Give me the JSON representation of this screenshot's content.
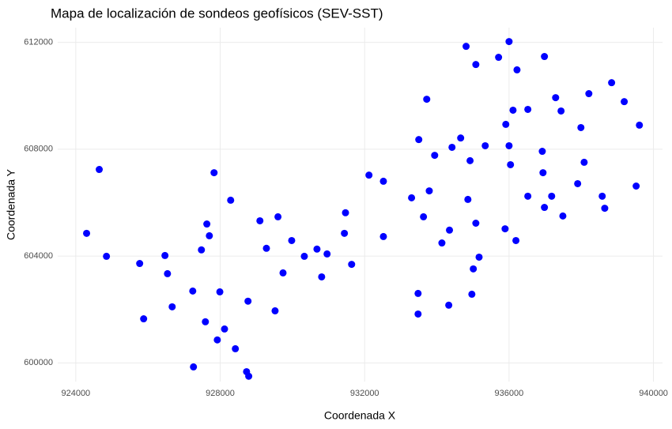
{
  "chart_data": {
    "type": "scatter",
    "title": "Mapa de localización de sondeos geofísicos (SEV-SST)",
    "x_label": "Coordenada X",
    "y_label": "Coordenada Y",
    "color": "#0000ff",
    "grid": true,
    "xlim": [
      923500,
      940250
    ],
    "ylim": [
      599300,
      612550
    ],
    "xticks": [
      924000,
      928000,
      932000,
      936000,
      940000
    ],
    "yticks": [
      600000,
      604000,
      608000,
      612000
    ],
    "x": [
      924300,
      924650,
      924850,
      925770,
      925880,
      926470,
      926540,
      926670,
      927240,
      927260,
      927480,
      927590,
      927630,
      927700,
      927830,
      927920,
      927990,
      928120,
      928290,
      928420,
      928730,
      928770,
      928790,
      929100,
      929280,
      929520,
      929600,
      929740,
      929980,
      930330,
      930680,
      930810,
      930960,
      931440,
      931470,
      931640,
      932120,
      932520,
      932520,
      933300,
      933480,
      933480,
      933500,
      933630,
      933720,
      933790,
      933940,
      934140,
      934330,
      934350,
      934420,
      934660,
      934810,
      934860,
      934920,
      934970,
      935010,
      935080,
      935080,
      935170,
      935340,
      935710,
      935890,
      935910,
      936000,
      936000,
      936040,
      936110,
      936190,
      936220,
      936520,
      936520,
      936920,
      936940,
      936980,
      936980,
      937180,
      937290,
      937440,
      937490,
      937900,
      937990,
      938080,
      938210,
      938580,
      938650,
      938840,
      939190,
      939520,
      939610
    ],
    "values": [
      604850,
      607240,
      603990,
      603720,
      601650,
      604020,
      603340,
      602100,
      602690,
      599850,
      604230,
      601540,
      605200,
      604760,
      607120,
      600860,
      602660,
      601270,
      606090,
      600530,
      599670,
      602310,
      599500,
      605320,
      604290,
      601950,
      605470,
      603370,
      604580,
      603990,
      604260,
      603220,
      604080,
      604850,
      605620,
      603690,
      607030,
      606800,
      604730,
      606180,
      602600,
      601830,
      608360,
      605470,
      609870,
      606440,
      607770,
      604490,
      602160,
      604970,
      608070,
      608420,
      611850,
      606120,
      607570,
      602570,
      603520,
      605230,
      611170,
      603960,
      608130,
      611440,
      605020,
      608930,
      612030,
      608130,
      607420,
      609460,
      604580,
      610970,
      606240,
      609490,
      607920,
      607120,
      605820,
      611470,
      606240,
      609930,
      609430,
      605500,
      606710,
      608810,
      607510,
      610080,
      606240,
      605790,
      610490,
      609780,
      606620,
      608900
    ]
  }
}
